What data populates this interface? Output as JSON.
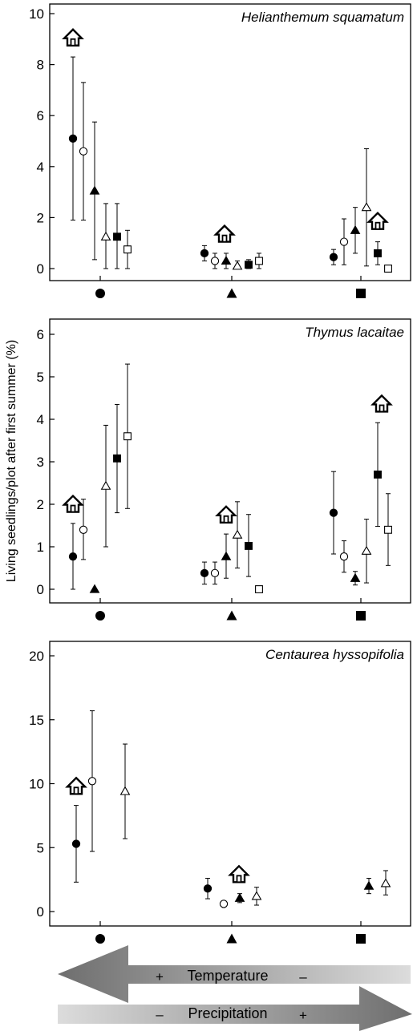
{
  "ylabel": "Living seedlings/plot after first summer (%)",
  "gradient": {
    "temperature": {
      "label": "Temperature",
      "high_sign": "+",
      "low_sign": "–"
    },
    "precipitation": {
      "label": "Precipitation",
      "low_sign": "–",
      "high_sign": "+"
    }
  },
  "colors": {
    "ink": "#000000",
    "arrow_dark": "#6e6e6e",
    "arrow_light": "#dcdcdc",
    "background": "#ffffff"
  },
  "site_marker_names": [
    "circle-icon",
    "triangle-icon",
    "square-icon"
  ],
  "chart_data": [
    {
      "type": "scatter",
      "title": "Helianthemum squamatum",
      "ylim": [
        0,
        10
      ],
      "yticks": [
        0,
        2,
        4,
        6,
        8,
        10
      ],
      "sites": [
        "circle",
        "triangle",
        "square"
      ],
      "points": [
        {
          "site": 0,
          "marker": "circle-filled",
          "y": 5.1,
          "lo": 1.9,
          "hi": 8.3
        },
        {
          "site": 0,
          "marker": "circle-open",
          "y": 4.6,
          "lo": 1.9,
          "hi": 7.3
        },
        {
          "site": 0,
          "marker": "triangle-filled",
          "y": 3.05,
          "lo": 0.35,
          "hi": 5.75
        },
        {
          "site": 0,
          "marker": "triangle-open",
          "y": 1.25,
          "lo": 0.0,
          "hi": 2.55
        },
        {
          "site": 0,
          "marker": "square-filled",
          "y": 1.25,
          "lo": 0.0,
          "hi": 2.55
        },
        {
          "site": 0,
          "marker": "square-open",
          "y": 0.75,
          "lo": 0.0,
          "hi": 1.5
        },
        {
          "site": 1,
          "marker": "circle-filled",
          "y": 0.6,
          "lo": 0.3,
          "hi": 0.9
        },
        {
          "site": 1,
          "marker": "circle-open",
          "y": 0.3,
          "lo": 0.0,
          "hi": 0.6
        },
        {
          "site": 1,
          "marker": "triangle-filled",
          "y": 0.3,
          "lo": 0.0,
          "hi": 0.6
        },
        {
          "site": 1,
          "marker": "triangle-open",
          "y": 0.1,
          "lo": 0.0,
          "hi": 0.3
        },
        {
          "site": 1,
          "marker": "square-filled",
          "y": 0.15,
          "lo": 0.0,
          "hi": 0.35
        },
        {
          "site": 1,
          "marker": "square-open",
          "y": 0.3,
          "lo": 0.0,
          "hi": 0.6
        },
        {
          "site": 2,
          "marker": "circle-filled",
          "y": 0.45,
          "lo": 0.15,
          "hi": 0.75
        },
        {
          "site": 2,
          "marker": "circle-open",
          "y": 1.05,
          "lo": 0.15,
          "hi": 1.95
        },
        {
          "site": 2,
          "marker": "triangle-filled",
          "y": 1.5,
          "lo": 0.6,
          "hi": 2.4
        },
        {
          "site": 2,
          "marker": "triangle-open",
          "y": 2.4,
          "lo": 0.1,
          "hi": 4.7
        },
        {
          "site": 2,
          "marker": "square-filled",
          "y": 0.6,
          "lo": 0.15,
          "hi": 1.05
        },
        {
          "site": 2,
          "marker": "square-open",
          "y": 0.0,
          "lo": 0.0,
          "hi": 0.0
        }
      ],
      "house_markers": [
        {
          "site": 0,
          "y": 8.75
        },
        {
          "site": 1,
          "y": 1.05
        },
        {
          "site": 2,
          "y": 1.55
        }
      ]
    },
    {
      "type": "scatter",
      "title": "Thymus lacaitae",
      "ylim": [
        0,
        6
      ],
      "yticks": [
        0,
        1,
        2,
        3,
        4,
        5,
        6
      ],
      "sites": [
        "circle",
        "triangle",
        "square"
      ],
      "points": [
        {
          "site": 0,
          "marker": "circle-filled",
          "y": 0.77,
          "lo": 0.0,
          "hi": 1.55
        },
        {
          "site": 0,
          "marker": "circle-open",
          "y": 1.4,
          "lo": 0.7,
          "hi": 2.12
        },
        {
          "site": 0,
          "marker": "triangle-filled",
          "y": 0.0,
          "lo": 0.0,
          "hi": 0.0
        },
        {
          "site": 0,
          "marker": "triangle-open",
          "y": 2.43,
          "lo": 1.0,
          "hi": 3.86
        },
        {
          "site": 0,
          "marker": "square-filled",
          "y": 3.08,
          "lo": 1.8,
          "hi": 4.35
        },
        {
          "site": 0,
          "marker": "square-open",
          "y": 3.6,
          "lo": 1.9,
          "hi": 5.3
        },
        {
          "site": 1,
          "marker": "circle-filled",
          "y": 0.38,
          "lo": 0.12,
          "hi": 0.64
        },
        {
          "site": 1,
          "marker": "circle-open",
          "y": 0.38,
          "lo": 0.12,
          "hi": 0.64
        },
        {
          "site": 1,
          "marker": "triangle-filled",
          "y": 0.77,
          "lo": 0.26,
          "hi": 1.3
        },
        {
          "site": 1,
          "marker": "triangle-open",
          "y": 1.28,
          "lo": 0.5,
          "hi": 2.06
        },
        {
          "site": 1,
          "marker": "square-filled",
          "y": 1.02,
          "lo": 0.3,
          "hi": 1.76
        },
        {
          "site": 1,
          "marker": "square-open",
          "y": 0.0,
          "lo": 0.0,
          "hi": 0.0
        },
        {
          "site": 2,
          "marker": "circle-filled",
          "y": 1.8,
          "lo": 0.83,
          "hi": 2.77
        },
        {
          "site": 2,
          "marker": "circle-open",
          "y": 0.77,
          "lo": 0.4,
          "hi": 1.14
        },
        {
          "site": 2,
          "marker": "triangle-filled",
          "y": 0.26,
          "lo": 0.1,
          "hi": 0.42
        },
        {
          "site": 2,
          "marker": "triangle-open",
          "y": 0.9,
          "lo": 0.15,
          "hi": 1.65
        },
        {
          "site": 2,
          "marker": "square-filled",
          "y": 2.7,
          "lo": 1.48,
          "hi": 3.92
        },
        {
          "site": 2,
          "marker": "square-open",
          "y": 1.4,
          "lo": 0.56,
          "hi": 2.25
        }
      ],
      "house_markers": [
        {
          "site": 0,
          "y": 1.82
        },
        {
          "site": 1,
          "y": 1.57
        },
        {
          "site": 2,
          "y": 4.18
        }
      ]
    },
    {
      "type": "scatter",
      "title": "Centaurea hyssopifolia",
      "ylim": [
        0,
        20
      ],
      "yticks": [
        0,
        5,
        10,
        15,
        20
      ],
      "sites": [
        "circle",
        "triangle",
        "square"
      ],
      "points": [
        {
          "site": 0,
          "marker": "circle-filled",
          "y": 5.3,
          "lo": 2.3,
          "hi": 8.3
        },
        {
          "site": 0,
          "marker": "circle-open",
          "y": 10.2,
          "lo": 4.7,
          "hi": 15.7
        },
        {
          "site": 0,
          "marker": "triangle-open",
          "y": 9.4,
          "lo": 5.7,
          "hi": 13.1
        },
        {
          "site": 1,
          "marker": "circle-filled",
          "y": 1.8,
          "lo": 1.0,
          "hi": 2.6
        },
        {
          "site": 1,
          "marker": "circle-open",
          "y": 0.6,
          "lo": 0.6,
          "hi": 0.6
        },
        {
          "site": 1,
          "marker": "triangle-filled",
          "y": 1.05,
          "lo": 0.7,
          "hi": 1.4
        },
        {
          "site": 1,
          "marker": "triangle-open",
          "y": 1.2,
          "lo": 0.5,
          "hi": 1.9
        },
        {
          "site": 2,
          "marker": "triangle-filled",
          "y": 2.0,
          "lo": 1.4,
          "hi": 2.6
        },
        {
          "site": 2,
          "marker": "triangle-open",
          "y": 2.2,
          "lo": 1.3,
          "hi": 3.2
        }
      ],
      "house_markers": [
        {
          "site": 0,
          "y": 9.2
        },
        {
          "site": 1,
          "y": 2.3
        }
      ]
    }
  ]
}
